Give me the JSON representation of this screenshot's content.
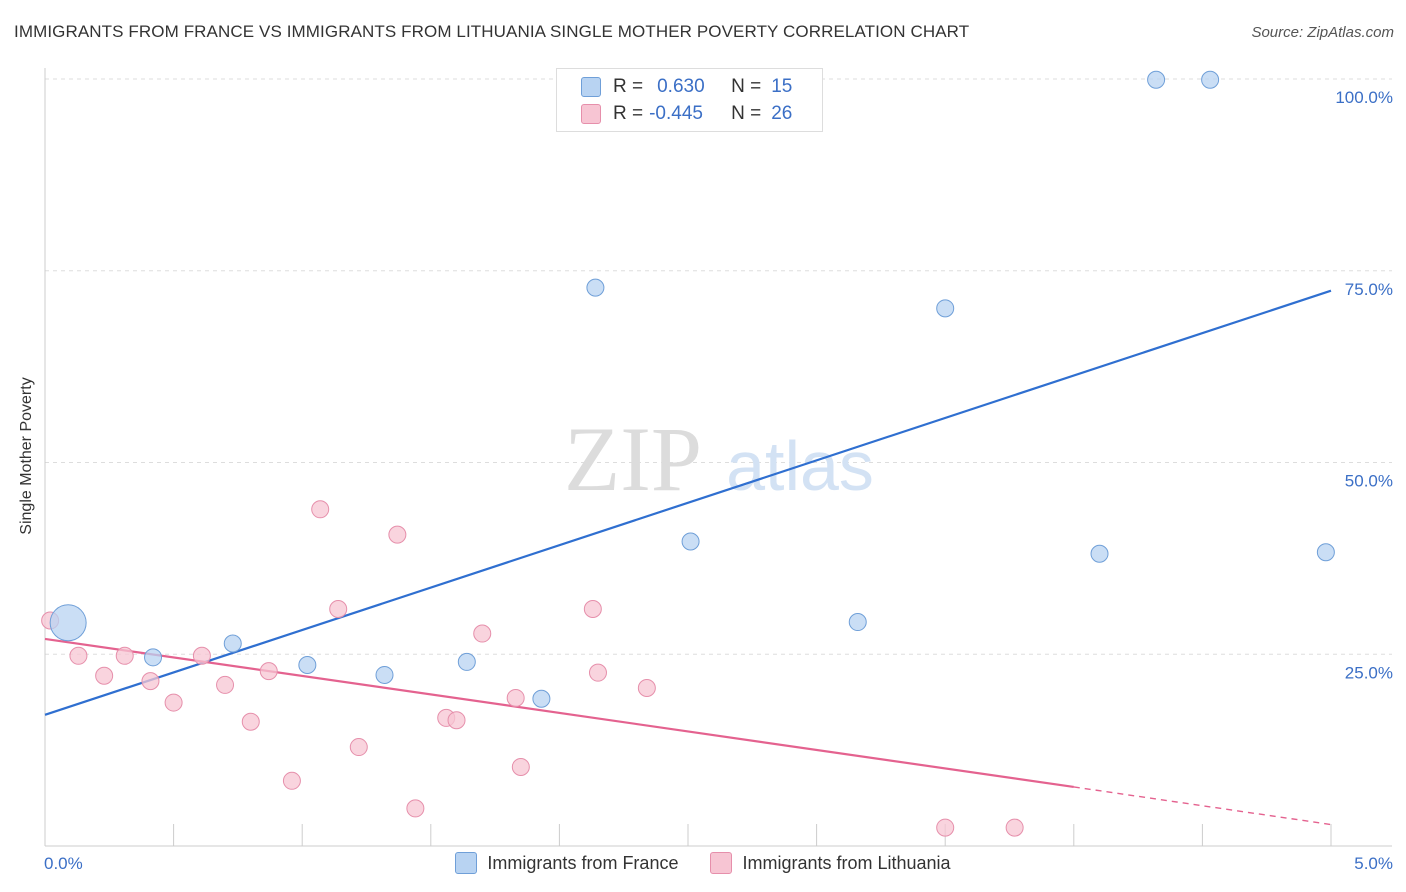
{
  "header": {
    "title": "IMMIGRANTS FROM FRANCE VS IMMIGRANTS FROM LITHUANIA SINGLE MOTHER POVERTY CORRELATION CHART",
    "source": "Source: ZipAtlas.com"
  },
  "watermark": {
    "zip": "ZIP",
    "atlas": "atlas"
  },
  "legend": {
    "france": {
      "r_label": "R =",
      "r_value": "0.630",
      "n_label": "N =",
      "n_value": "15"
    },
    "lithuania": {
      "r_label": "R =",
      "r_value": "-0.445",
      "n_label": "N =",
      "n_value": "26"
    }
  },
  "colors": {
    "france_fill": "#b8d3f2",
    "france_stroke": "#6f9fd8",
    "france_line": "#2f6fd0",
    "lithuania_fill": "#f7c5d3",
    "lithuania_stroke": "#e68fab",
    "lithuania_line": "#e4628f"
  },
  "chart_data": {
    "type": "scatter",
    "title": "IMMIGRANTS FROM FRANCE VS IMMIGRANTS FROM LITHUANIA SINGLE MOTHER POVERTY CORRELATION CHART",
    "xlabel": "",
    "ylabel": "Single Mother Poverty",
    "xlim": [
      0,
      5
    ],
    "ylim": [
      0,
      100
    ],
    "x_tick_labels": [
      "0.0%",
      "5.0%"
    ],
    "y_ticks": [
      25,
      50,
      75,
      100
    ],
    "y_tick_labels": [
      "25.0%",
      "50.0%",
      "75.0%",
      "100.0%"
    ],
    "series": [
      {
        "name": "Immigrants from France",
        "points": [
          {
            "x": 0.09,
            "y": 29.1,
            "big": true
          },
          {
            "x": 0.42,
            "y": 24.6
          },
          {
            "x": 0.73,
            "y": 26.4
          },
          {
            "x": 1.02,
            "y": 23.6
          },
          {
            "x": 1.32,
            "y": 22.3
          },
          {
            "x": 1.64,
            "y": 24.0
          },
          {
            "x": 1.93,
            "y": 19.2
          },
          {
            "x": 2.14,
            "y": 72.8
          },
          {
            "x": 2.51,
            "y": 39.7
          },
          {
            "x": 3.16,
            "y": 29.2
          },
          {
            "x": 3.5,
            "y": 70.1
          },
          {
            "x": 4.1,
            "y": 38.1
          },
          {
            "x": 4.32,
            "y": 99.9
          },
          {
            "x": 4.53,
            "y": 99.9
          },
          {
            "x": 4.98,
            "y": 38.3
          }
        ],
        "trend": {
          "x0": 0.0,
          "y0": 17.1,
          "x1": 5.0,
          "y1": 72.4
        }
      },
      {
        "name": "Immigrants from Lithuania",
        "points": [
          {
            "x": 0.02,
            "y": 29.4
          },
          {
            "x": 0.13,
            "y": 24.8
          },
          {
            "x": 0.23,
            "y": 22.2
          },
          {
            "x": 0.31,
            "y": 24.8
          },
          {
            "x": 0.41,
            "y": 21.5
          },
          {
            "x": 0.5,
            "y": 18.7
          },
          {
            "x": 0.61,
            "y": 24.8
          },
          {
            "x": 0.7,
            "y": 21.0
          },
          {
            "x": 0.8,
            "y": 16.2
          },
          {
            "x": 0.87,
            "y": 22.8
          },
          {
            "x": 0.96,
            "y": 8.5
          },
          {
            "x": 1.07,
            "y": 43.9
          },
          {
            "x": 1.14,
            "y": 30.9
          },
          {
            "x": 1.22,
            "y": 12.9
          },
          {
            "x": 1.37,
            "y": 40.6
          },
          {
            "x": 1.44,
            "y": 4.9
          },
          {
            "x": 1.56,
            "y": 16.7
          },
          {
            "x": 1.6,
            "y": 16.4
          },
          {
            "x": 1.7,
            "y": 27.7
          },
          {
            "x": 1.83,
            "y": 19.3
          },
          {
            "x": 1.85,
            "y": 10.3
          },
          {
            "x": 2.13,
            "y": 30.9
          },
          {
            "x": 2.15,
            "y": 22.6
          },
          {
            "x": 2.34,
            "y": 20.6
          },
          {
            "x": 3.5,
            "y": 2.4
          },
          {
            "x": 3.77,
            "y": 2.4
          }
        ],
        "trend": {
          "x0": 0.0,
          "y0": 27.0,
          "x1": 4.0,
          "y1": 7.7,
          "dashed_to_x": 5.0,
          "dashed_to_y": 2.8
        }
      }
    ]
  },
  "bottom_legend": [
    "Immigrants from France",
    "Immigrants from Lithuania"
  ]
}
